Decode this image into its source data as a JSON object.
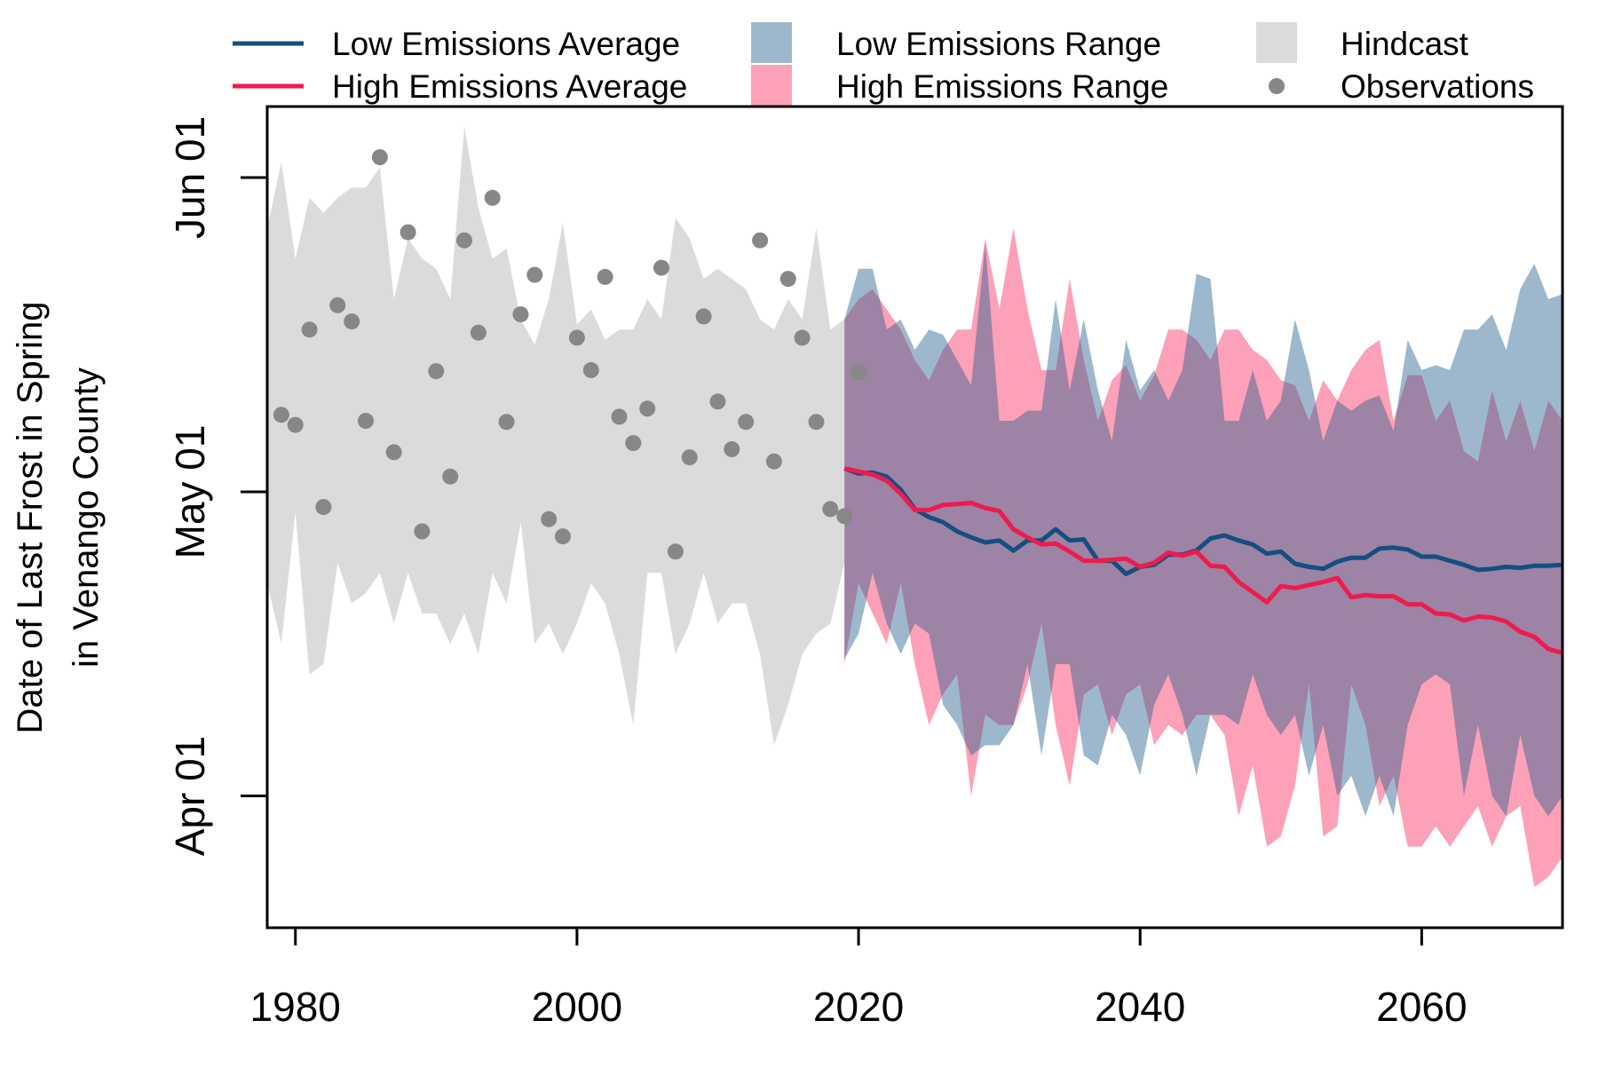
{
  "chart_data": {
    "type": "line",
    "title": "",
    "ylabel_lines": [
      "Date of Last Frost in Spring",
      "in Venango County"
    ],
    "xlabel": "",
    "xlim": [
      1978,
      2070
    ],
    "ylim": [
      "Mar 19",
      "Jun 08"
    ],
    "ylim_doy": [
      78,
      159
    ],
    "x_ticks": [
      1980,
      2000,
      2020,
      2040,
      2060
    ],
    "y_ticks": [
      {
        "label": "Apr 01",
        "doy": 91
      },
      {
        "label": "May 01",
        "doy": 121
      },
      {
        "label": "Jun 01",
        "doy": 152
      }
    ],
    "legend": {
      "placement": "top",
      "items": [
        {
          "key": "low_avg",
          "label": "Low Emissions Average",
          "kind": "line"
        },
        {
          "key": "high_avg",
          "label": "High Emissions Average",
          "kind": "line"
        },
        {
          "key": "low_range",
          "label": "Low Emissions Range",
          "kind": "fill"
        },
        {
          "key": "high_range",
          "label": "High Emissions Range",
          "kind": "fill"
        },
        {
          "key": "hindcast",
          "label": "Hindcast",
          "kind": "fill"
        },
        {
          "key": "obs",
          "label": "Observations",
          "kind": "point"
        }
      ]
    },
    "colors": {
      "low_avg": "#154e80",
      "high_avg": "#ee1b4f",
      "low_range": "#9db8cd",
      "high_range": "#fca1b8",
      "overlap": "#9d83a4",
      "hindcast": "#dbdbdb",
      "obs": "#878787"
    },
    "hindcast": {
      "x": [
        1978,
        1979,
        1980,
        1981,
        1982,
        1983,
        1984,
        1985,
        1986,
        1987,
        1988,
        1989,
        1990,
        1991,
        1992,
        1993,
        1994,
        1995,
        1996,
        1997,
        1998,
        1999,
        2000,
        2001,
        2002,
        2003,
        2004,
        2005,
        2006,
        2007,
        2008,
        2009,
        2010,
        2011,
        2012,
        2013,
        2014,
        2015,
        2016,
        2017,
        2018,
        2019
      ],
      "upper": [
        147,
        153.5,
        144,
        150,
        148.5,
        150,
        151,
        151,
        153,
        140,
        146,
        144,
        143,
        140,
        157,
        149,
        144,
        145,
        138,
        135.5,
        140,
        147.5,
        137.5,
        139,
        136,
        137,
        137,
        140,
        138,
        148,
        146,
        142,
        143,
        142,
        141,
        138,
        137,
        140,
        138,
        147,
        137,
        138
      ],
      "lower": [
        112,
        106,
        119,
        103,
        104,
        114,
        110,
        111,
        113,
        108,
        113,
        109,
        109,
        106,
        109,
        105,
        113,
        110,
        118,
        106,
        108,
        105,
        108,
        112,
        110,
        105,
        98,
        113,
        113,
        105,
        108,
        113,
        108,
        110,
        110,
        105,
        96,
        100,
        105,
        107,
        108,
        114
      ]
    },
    "observations": {
      "x": [
        1979,
        1980,
        1981,
        1982,
        1983,
        1984,
        1985,
        1986,
        1987,
        1988,
        1989,
        1990,
        1991,
        1992,
        1993,
        1994,
        1995,
        1996,
        1997,
        1998,
        1999,
        2000,
        2001,
        2002,
        2003,
        2004,
        2005,
        2006,
        2007,
        2008,
        2009,
        2010,
        2011,
        2012,
        2013,
        2014,
        2015,
        2016,
        2017,
        2018,
        2019,
        2020
      ],
      "y": [
        128.6,
        127.6,
        137,
        119.5,
        139.4,
        137.8,
        128,
        154,
        124.9,
        146.6,
        117.1,
        132.9,
        122.5,
        145.8,
        136.7,
        150,
        127.9,
        138.5,
        142.4,
        118.3,
        116.6,
        136.2,
        133,
        142.2,
        128.4,
        125.8,
        129.2,
        143.1,
        115.1,
        124.4,
        138.3,
        129.9,
        125.2,
        127.9,
        145.8,
        124,
        142,
        136.2,
        127.9,
        119.3,
        118.6,
        132.8
      ]
    },
    "low_range": {
      "x": [
        2019,
        2020,
        2021,
        2022,
        2023,
        2024,
        2025,
        2026,
        2027,
        2028,
        2029,
        2030,
        2031,
        2032,
        2033,
        2034,
        2035,
        2036,
        2037,
        2038,
        2039,
        2040,
        2041,
        2042,
        2043,
        2044,
        2045,
        2046,
        2047,
        2048,
        2049,
        2050,
        2051,
        2052,
        2053,
        2054,
        2055,
        2056,
        2057,
        2058,
        2059,
        2060,
        2061,
        2062,
        2063,
        2064,
        2065,
        2066,
        2067,
        2068,
        2069,
        2070
      ],
      "upper": [
        138,
        143,
        143,
        137,
        138,
        135,
        137,
        136.5,
        134,
        131.5,
        145.5,
        128,
        128,
        129,
        129,
        140,
        131,
        138,
        131,
        126,
        136,
        131,
        133,
        130,
        133,
        142.5,
        142,
        128,
        128,
        133,
        128,
        130,
        138,
        133,
        126,
        130,
        129,
        130,
        130.5,
        127,
        136,
        133,
        133.5,
        133,
        137,
        137,
        138.5,
        135,
        141,
        143.5,
        140,
        140.5
      ],
      "lower": [
        104.5,
        107,
        113,
        108,
        105,
        108,
        107,
        100,
        98,
        95,
        96,
        96,
        98,
        104,
        95,
        104,
        104,
        95,
        94,
        99,
        97,
        93,
        100,
        103,
        99,
        93,
        99,
        99,
        98,
        103,
        99,
        97,
        99,
        93,
        98,
        91,
        93,
        89,
        93,
        89,
        98,
        102,
        103,
        102,
        91,
        98,
        91,
        89,
        97,
        91,
        89,
        91
      ]
    },
    "high_range": {
      "x": [
        2019,
        2020,
        2021,
        2022,
        2023,
        2024,
        2025,
        2026,
        2027,
        2028,
        2029,
        2030,
        2031,
        2032,
        2033,
        2034,
        2035,
        2036,
        2037,
        2038,
        2039,
        2040,
        2041,
        2042,
        2043,
        2044,
        2045,
        2046,
        2047,
        2048,
        2049,
        2050,
        2051,
        2052,
        2053,
        2054,
        2055,
        2056,
        2057,
        2058,
        2059,
        2060,
        2061,
        2062,
        2063,
        2064,
        2065,
        2066,
        2067,
        2068,
        2069,
        2070
      ],
      "upper": [
        138,
        140,
        141,
        139,
        137,
        134,
        132,
        135,
        137,
        137,
        146,
        139,
        147,
        139,
        133,
        133,
        142,
        134,
        128,
        132,
        133.5,
        130,
        132.5,
        137,
        137,
        136,
        134,
        137,
        137,
        135,
        134,
        132,
        131.5,
        128,
        132,
        130,
        133,
        135,
        136,
        128,
        132.5,
        132.5,
        128,
        130,
        125,
        124,
        131,
        126,
        130,
        125,
        130,
        128
      ],
      "lower": [
        104,
        112,
        109,
        106,
        112,
        104,
        98,
        101,
        103,
        91,
        99,
        98,
        98,
        102,
        108,
        98,
        92,
        101,
        102,
        97,
        101,
        102,
        96,
        98,
        97,
        99,
        99,
        97,
        89,
        94,
        86,
        87,
        92,
        102,
        87,
        88,
        102,
        98,
        90,
        93,
        86,
        86,
        88,
        86,
        88,
        90,
        86,
        89,
        90,
        82,
        83,
        85
      ]
    },
    "series": [
      {
        "key": "low_avg",
        "name": "Low Emissions Average",
        "x": [
          2019,
          2020,
          2021,
          2022,
          2023,
          2024,
          2025,
          2026,
          2027,
          2028,
          2029,
          2030,
          2031,
          2032,
          2033,
          2034,
          2035,
          2036,
          2037,
          2038,
          2039,
          2040,
          2041,
          2042,
          2043,
          2044,
          2045,
          2046,
          2047,
          2048,
          2049,
          2050,
          2051,
          2052,
          2053,
          2054,
          2055,
          2056,
          2057,
          2058,
          2059,
          2060,
          2061,
          2062,
          2063,
          2064,
          2065,
          2066,
          2067,
          2068,
          2069,
          2070
        ],
        "y": [
          123.3,
          122.8,
          122.9,
          122.5,
          121.2,
          119.3,
          118.5,
          118,
          117.1,
          116.5,
          116,
          116.2,
          115.2,
          116.2,
          116.2,
          117.3,
          116.2,
          116.3,
          114.2,
          114.2,
          112.9,
          113.6,
          113.8,
          114.8,
          114.8,
          115.2,
          116.4,
          116.7,
          116.2,
          115.8,
          114.9,
          115.1,
          113.9,
          113.6,
          113.4,
          114.1,
          114.5,
          114.5,
          115.4,
          115.5,
          115.3,
          114.6,
          114.6,
          114.2,
          113.8,
          113.3,
          113.4,
          113.6,
          113.5,
          113.7,
          113.7,
          113.8
        ]
      },
      {
        "key": "high_avg",
        "name": "High Emissions Average",
        "x": [
          2019,
          2020,
          2021,
          2022,
          2023,
          2024,
          2025,
          2026,
          2027,
          2028,
          2029,
          2030,
          2031,
          2032,
          2033,
          2034,
          2035,
          2036,
          2037,
          2038,
          2039,
          2040,
          2041,
          2042,
          2043,
          2044,
          2045,
          2046,
          2047,
          2048,
          2049,
          2050,
          2051,
          2052,
          2053,
          2054,
          2055,
          2056,
          2057,
          2058,
          2059,
          2060,
          2061,
          2062,
          2063,
          2064,
          2065,
          2066,
          2067,
          2068,
          2069,
          2070
        ],
        "y": [
          123.3,
          123,
          122.7,
          122.1,
          120.8,
          119.2,
          119.2,
          119.7,
          119.8,
          119.9,
          119.4,
          119.1,
          117.3,
          116.5,
          115.8,
          115.9,
          115.1,
          114.2,
          114.2,
          114.3,
          114.4,
          113.6,
          114,
          115,
          114.7,
          115.1,
          113.7,
          113.6,
          112.1,
          111.1,
          110.1,
          111.7,
          111.5,
          111.8,
          112.1,
          112.5,
          110.6,
          110.8,
          110.7,
          110.7,
          109.9,
          109.9,
          109,
          108.9,
          108.3,
          108.7,
          108.6,
          108.2,
          107.2,
          106.7,
          105.5,
          105.1
        ]
      }
    ]
  }
}
